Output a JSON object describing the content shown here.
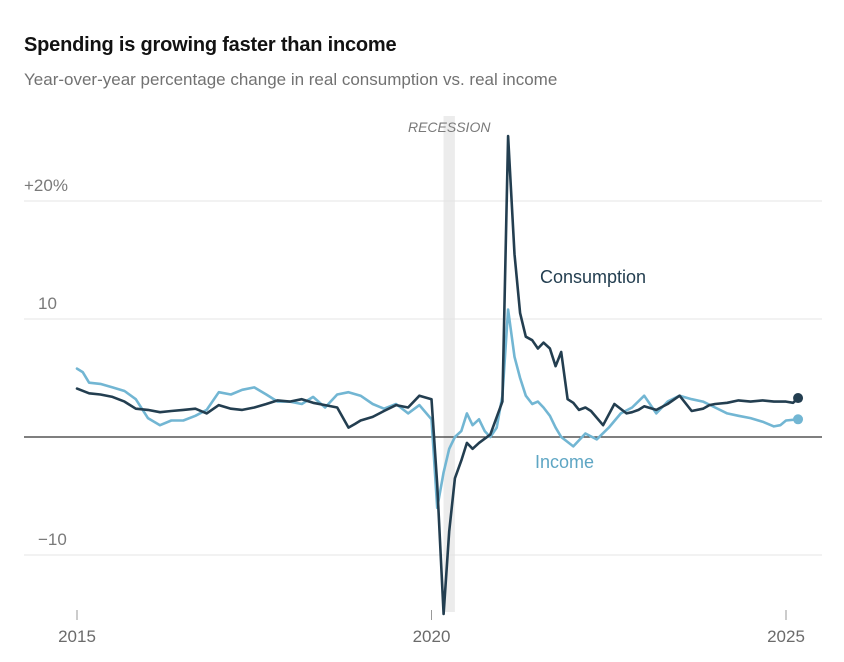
{
  "chart_data": {
    "type": "line",
    "title": "Spending is growing faster than income",
    "subtitle": "Year-over-year percentage change in real consumption vs. real income",
    "xlabel": "",
    "ylabel": "",
    "y_ticks": [
      {
        "value": 20,
        "label": "+20%"
      },
      {
        "value": 10,
        "label": "10"
      },
      {
        "value": -10,
        "label": "−10"
      }
    ],
    "x_ticks": [
      {
        "value": 2015,
        "label": "2015"
      },
      {
        "value": 2020,
        "label": "2020"
      },
      {
        "value": 2025,
        "label": "2025"
      }
    ],
    "ylim": [
      -15,
      26
    ],
    "xlim": [
      2014.95,
      2025.5
    ],
    "recession": {
      "label": "RECESSION",
      "start": 2020.17,
      "end": 2020.33
    },
    "series": [
      {
        "name": "Consumption",
        "color": "#233e50",
        "x": [
          2015.0,
          2015.17,
          2015.33,
          2015.5,
          2015.67,
          2015.83,
          2016.0,
          2016.17,
          2016.33,
          2016.5,
          2016.67,
          2016.83,
          2017.0,
          2017.17,
          2017.33,
          2017.5,
          2017.67,
          2017.83,
          2018.0,
          2018.17,
          2018.33,
          2018.5,
          2018.67,
          2018.83,
          2018.92,
          2019.0,
          2019.17,
          2019.33,
          2019.5,
          2019.67,
          2019.83,
          2020.0,
          2020.08,
          2020.17,
          2020.25,
          2020.33,
          2020.42,
          2020.5,
          2020.58,
          2020.67,
          2020.83,
          2021.0,
          2021.08,
          2021.17,
          2021.25,
          2021.33,
          2021.42,
          2021.5,
          2021.58,
          2021.67,
          2021.75,
          2021.83,
          2021.92,
          2022.0,
          2022.08,
          2022.17,
          2022.25,
          2022.42,
          2022.58,
          2022.75,
          2022.83,
          2022.92,
          2023.0,
          2023.17,
          2023.33,
          2023.5,
          2023.67,
          2023.83,
          2023.92,
          2024.0,
          2024.17,
          2024.33,
          2024.5,
          2024.67,
          2024.83,
          2025.0,
          2025.1,
          2025.17
        ],
        "values": [
          4.1,
          3.7,
          3.6,
          3.4,
          3.0,
          2.4,
          2.3,
          2.1,
          2.2,
          2.3,
          2.4,
          2.0,
          2.7,
          2.4,
          2.3,
          2.5,
          2.8,
          3.1,
          3.0,
          3.2,
          2.9,
          2.7,
          2.5,
          0.8,
          1.1,
          1.4,
          1.7,
          2.2,
          2.7,
          2.5,
          3.5,
          3.2,
          -4.0,
          -15.0,
          -8.0,
          -3.5,
          -2.0,
          -0.5,
          -1.0,
          -0.5,
          0.2,
          3.0,
          25.5,
          15.5,
          10.5,
          8.5,
          8.2,
          7.5,
          8.0,
          7.5,
          6.0,
          7.2,
          3.2,
          2.9,
          2.3,
          2.5,
          2.2,
          1.0,
          2.8,
          2.0,
          2.1,
          2.3,
          2.6,
          2.3,
          2.8,
          3.5,
          2.2,
          2.4,
          2.7,
          2.8,
          2.9,
          3.1,
          3.0,
          3.1,
          3.0,
          3.0,
          2.9,
          3.3
        ]
      },
      {
        "name": "Income",
        "color": "#72b6d3",
        "x": [
          2015.0,
          2015.08,
          2015.17,
          2015.33,
          2015.5,
          2015.67,
          2015.83,
          2016.0,
          2016.17,
          2016.33,
          2016.5,
          2016.67,
          2016.83,
          2017.0,
          2017.17,
          2017.33,
          2017.5,
          2017.67,
          2017.83,
          2018.0,
          2018.17,
          2018.33,
          2018.5,
          2018.67,
          2018.83,
          2019.0,
          2019.17,
          2019.33,
          2019.5,
          2019.67,
          2019.83,
          2020.0,
          2020.08,
          2020.17,
          2020.25,
          2020.33,
          2020.42,
          2020.5,
          2020.58,
          2020.67,
          2020.75,
          2020.83,
          2020.92,
          2021.0,
          2021.08,
          2021.17,
          2021.25,
          2021.33,
          2021.42,
          2021.5,
          2021.58,
          2021.67,
          2021.75,
          2021.83,
          2022.0,
          2022.17,
          2022.33,
          2022.5,
          2022.67,
          2022.83,
          2023.0,
          2023.17,
          2023.33,
          2023.5,
          2023.67,
          2023.83,
          2024.0,
          2024.17,
          2024.33,
          2024.5,
          2024.67,
          2024.83,
          2024.92,
          2025.0,
          2025.17
        ],
        "values": [
          5.8,
          5.5,
          4.6,
          4.5,
          4.2,
          3.9,
          3.2,
          1.6,
          1.0,
          1.4,
          1.4,
          1.8,
          2.3,
          3.8,
          3.6,
          4.0,
          4.2,
          3.6,
          3.0,
          3.0,
          2.8,
          3.4,
          2.5,
          3.6,
          3.8,
          3.5,
          2.8,
          2.4,
          2.8,
          2.0,
          2.7,
          1.5,
          -6.0,
          -3.0,
          -1.0,
          0.0,
          0.5,
          2.0,
          1.0,
          1.5,
          0.5,
          0.0,
          0.8,
          3.5,
          10.8,
          6.8,
          5.0,
          3.5,
          2.8,
          3.0,
          2.5,
          1.8,
          0.8,
          0.0,
          -0.8,
          0.3,
          -0.2,
          0.8,
          2.0,
          2.5,
          3.5,
          2.0,
          3.0,
          3.5,
          3.2,
          3.0,
          2.5,
          2.0,
          1.8,
          1.6,
          1.3,
          0.9,
          1.0,
          1.4,
          1.5
        ]
      }
    ]
  }
}
